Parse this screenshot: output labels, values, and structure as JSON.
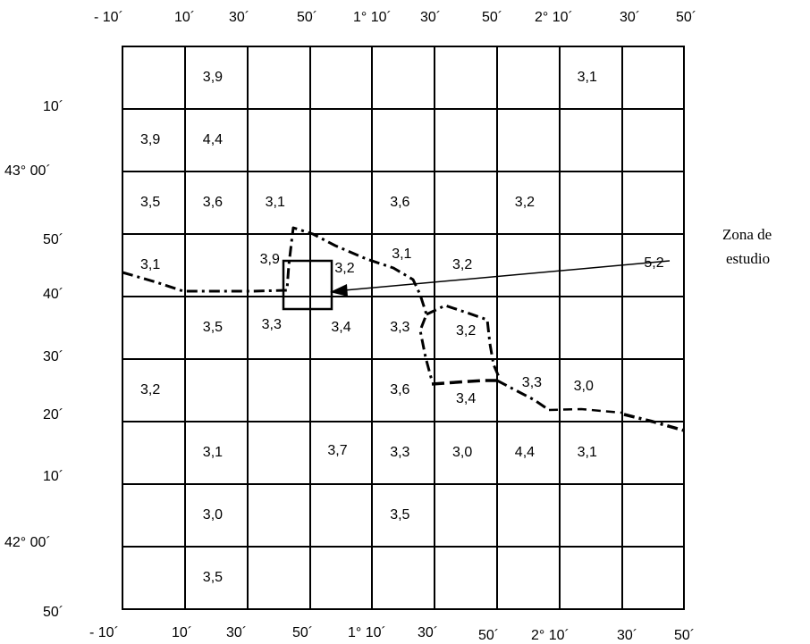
{
  "map": {
    "top_lon_labels": [
      "- 10´",
      "10´",
      "30´",
      "50´",
      "1° 10´",
      "30´",
      "50´",
      "2° 10´",
      "30´",
      "50´"
    ],
    "bottom_lon_labels": [
      "- 10´",
      "10´",
      "30´",
      "50´",
      "1° 10´",
      "30´",
      "50´",
      "2° 10´",
      "30´",
      "50´"
    ],
    "lat_labels": [
      "10´",
      "43° 00´",
      "50´",
      "40´",
      "30´",
      "20´",
      "10´",
      "42° 00´",
      "50´"
    ],
    "cells": [
      {
        "row": 0,
        "col": 1,
        "value": "3,9"
      },
      {
        "row": 0,
        "col": 7,
        "value": "3,1"
      },
      {
        "row": 1,
        "col": 0,
        "value": "3,9"
      },
      {
        "row": 1,
        "col": 1,
        "value": "4,4"
      },
      {
        "row": 2,
        "col": 0,
        "value": "3,5"
      },
      {
        "row": 2,
        "col": 1,
        "value": "3,6"
      },
      {
        "row": 2,
        "col": 2,
        "value": "3,1"
      },
      {
        "row": 2,
        "col": 4,
        "value": "3,6"
      },
      {
        "row": 2,
        "col": 6,
        "value": "3,2"
      },
      {
        "row": 3,
        "col": 0,
        "value": "3,1"
      },
      {
        "row": 3,
        "col": 2,
        "value": "3,9"
      },
      {
        "row": 3,
        "col": 3,
        "value": "3,2"
      },
      {
        "row": 3,
        "col": 4,
        "value": "3,1"
      },
      {
        "row": 3,
        "col": 5,
        "value": "3,2"
      },
      {
        "row": 3,
        "col": 8,
        "value": "5,2"
      },
      {
        "row": 4,
        "col": 1,
        "value": "3,5"
      },
      {
        "row": 4,
        "col": 2,
        "value": "3,3"
      },
      {
        "row": 4,
        "col": 3,
        "value": "3,4"
      },
      {
        "row": 4,
        "col": 4,
        "value": "3,3"
      },
      {
        "row": 4,
        "col": 5,
        "value": "3,2"
      },
      {
        "row": 5,
        "col": 0,
        "value": "3,2"
      },
      {
        "row": 5,
        "col": 4,
        "value": "3,6"
      },
      {
        "row": 5,
        "col": 5,
        "value": "3,4"
      },
      {
        "row": 5,
        "col": 6,
        "value": "3,3"
      },
      {
        "row": 5,
        "col": 7,
        "value": "3,0"
      },
      {
        "row": 6,
        "col": 1,
        "value": "3,1"
      },
      {
        "row": 6,
        "col": 3,
        "value": "3,7"
      },
      {
        "row": 6,
        "col": 4,
        "value": "3,3"
      },
      {
        "row": 6,
        "col": 5,
        "value": "3,0"
      },
      {
        "row": 6,
        "col": 6,
        "value": "4,4"
      },
      {
        "row": 6,
        "col": 7,
        "value": "3,1"
      },
      {
        "row": 7,
        "col": 1,
        "value": "3,0"
      },
      {
        "row": 7,
        "col": 4,
        "value": "3,5"
      },
      {
        "row": 8,
        "col": 1,
        "value": "3,5"
      }
    ],
    "annotation": [
      "Zona de",
      "estudio"
    ]
  }
}
